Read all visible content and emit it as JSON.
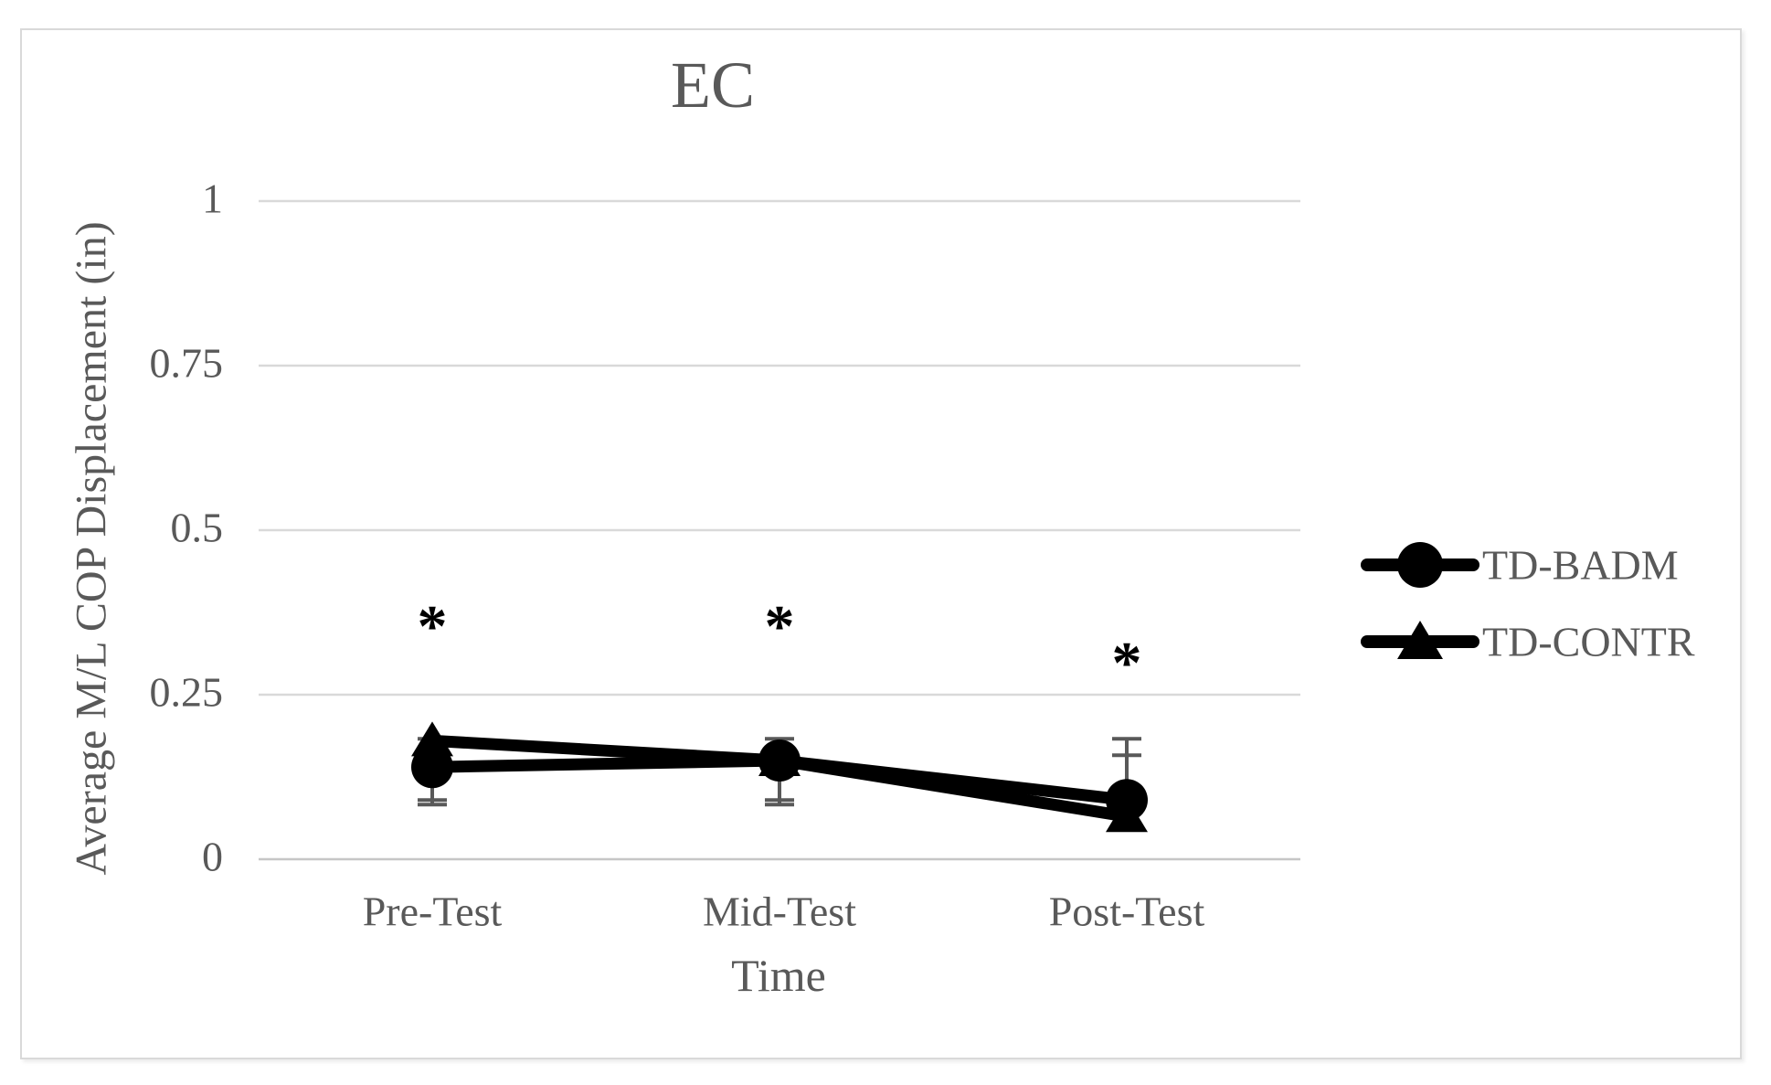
{
  "window": {
    "background": "#ffffff",
    "frame_border_color": "#d9d9d9"
  },
  "chart_data": {
    "type": "line",
    "title": "EC",
    "xlabel": "Time",
    "ylabel": "Average M/L  COP Displacement (in)",
    "categories": [
      "Pre-Test",
      "Mid-Test",
      "Post-Test"
    ],
    "ylim": [
      0,
      1
    ],
    "yticks": [
      {
        "value": 0,
        "label": "0"
      },
      {
        "value": 0.25,
        "label": "0.25"
      },
      {
        "value": 0.5,
        "label": "0.5"
      },
      {
        "value": 0.75,
        "label": "0.75"
      },
      {
        "value": 1,
        "label": "1"
      }
    ],
    "grid": true,
    "legend_position": "right",
    "series": [
      {
        "name": "TD-BADM",
        "marker": "circle",
        "color": "#000000",
        "values": [
          0.14,
          0.15,
          0.09
        ],
        "error_high": [
          0.043,
          0.033,
          0.093
        ],
        "error_low": [
          0.057,
          0.067,
          0
        ]
      },
      {
        "name": "TD-CONTR",
        "marker": "triangle",
        "color": "#000000",
        "values": [
          0.18,
          0.15,
          0.065
        ],
        "error_high": [
          0,
          0,
          0.093
        ],
        "error_low": [
          0.09,
          0.06,
          0
        ]
      }
    ],
    "annotations": [
      {
        "text": "*",
        "category": "Pre-Test",
        "y": 0.365
      },
      {
        "text": "*",
        "category": "Mid-Test",
        "y": 0.365
      },
      {
        "text": "*",
        "category": "Post-Test",
        "y": 0.31
      }
    ],
    "colors": {
      "text": "#595959",
      "gridline": "#d9d9d9",
      "axis_line": "#c6c6c6",
      "error_bar": "#595959",
      "series": "#000000"
    }
  }
}
